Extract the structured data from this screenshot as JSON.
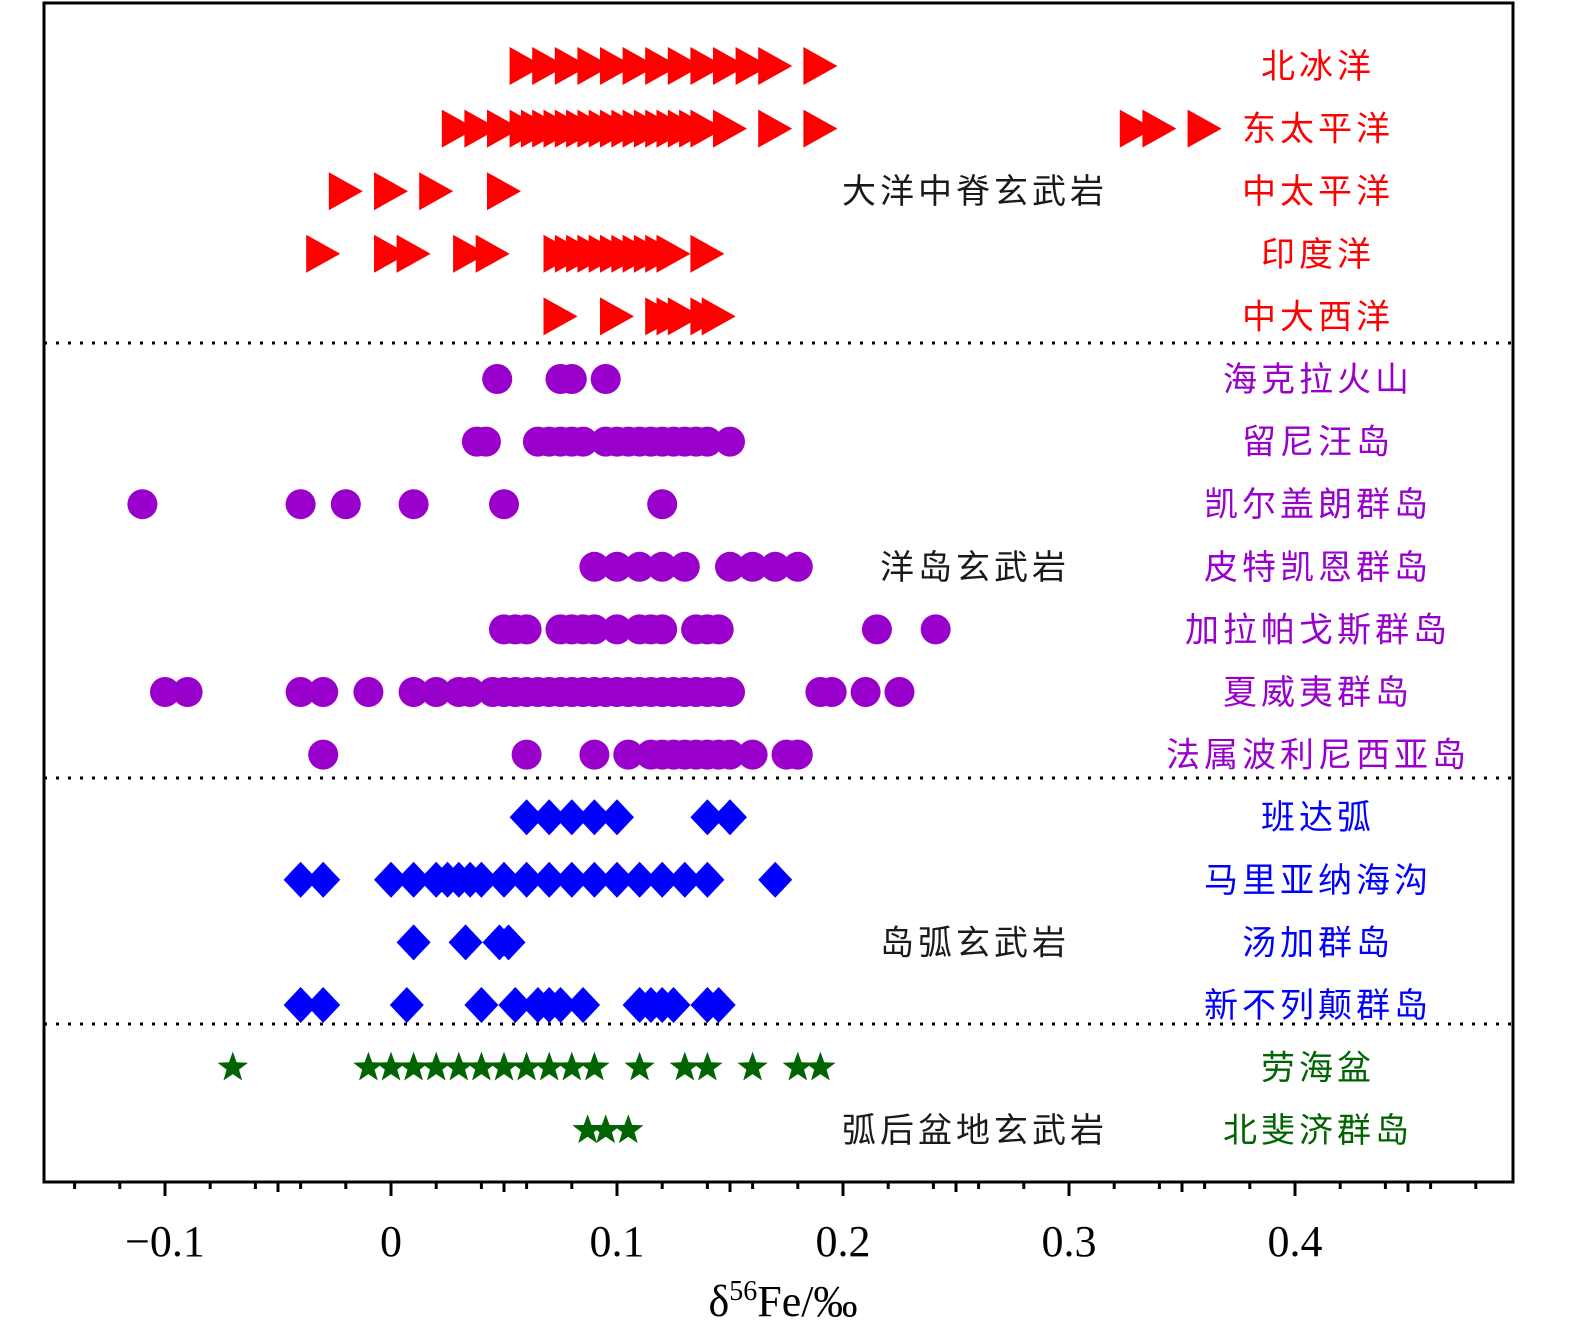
{
  "chart_data": {
    "type": "scatter",
    "xlabel": "δ56Fe/‰",
    "xlabel_parts": {
      "prefix": "δ",
      "sup": "56",
      "suffix": "Fe/‰"
    },
    "xlim": [
      -0.15,
      0.5
    ],
    "xticks": [
      -0.1,
      0,
      0.1,
      0.2,
      0.3,
      0.4
    ],
    "xtick_labels": [
      "−0.1",
      "0",
      "0.1",
      "0.2",
      "0.3",
      "0.4"
    ],
    "colors": {
      "mor": "#ff0000",
      "oib": "#9900cc",
      "arc": "#0000ff",
      "backarc": "#006400",
      "group_text": "#1a1a1a"
    },
    "groups": [
      {
        "name": "大洋中脊玄武岩",
        "label_row": 2,
        "color": "#ff0000",
        "marker": "triangle-right",
        "series": [
          {
            "name": "北冰洋",
            "row": 0,
            "values": [
              0.06,
              0.07,
              0.08,
              0.09,
              0.1,
              0.11,
              0.12,
              0.13,
              0.14,
              0.15,
              0.16,
              0.17,
              0.19
            ]
          },
          {
            "name": "东太平洋",
            "row": 1,
            "values": [
              0.03,
              0.04,
              0.05,
              0.06,
              0.065,
              0.07,
              0.075,
              0.08,
              0.085,
              0.09,
              0.095,
              0.1,
              0.105,
              0.11,
              0.115,
              0.12,
              0.125,
              0.13,
              0.135,
              0.14,
              0.15,
              0.17,
              0.19,
              0.33,
              0.34,
              0.36
            ]
          },
          {
            "name": "中太平洋",
            "row": 2,
            "values": [
              -0.02,
              0.0,
              0.02,
              0.05
            ]
          },
          {
            "name": "印度洋",
            "row": 3,
            "values": [
              -0.03,
              0.0,
              0.01,
              0.035,
              0.045,
              0.075,
              0.08,
              0.085,
              0.09,
              0.095,
              0.1,
              0.105,
              0.11,
              0.115,
              0.12,
              0.125,
              0.14
            ]
          },
          {
            "name": "中大西洋",
            "row": 4,
            "values": [
              0.075,
              0.1,
              0.12,
              0.125,
              0.13,
              0.14,
              0.145
            ]
          }
        ]
      },
      {
        "name": "洋岛玄武岩",
        "label_row": 8,
        "color": "#9900cc",
        "marker": "circle",
        "series": [
          {
            "name": "海克拉火山",
            "row": 5,
            "values": [
              0.047,
              0.075,
              0.08,
              0.095
            ]
          },
          {
            "name": "留尼汪岛",
            "row": 6,
            "values": [
              0.038,
              0.042,
              0.065,
              0.07,
              0.075,
              0.08,
              0.085,
              0.095,
              0.1,
              0.105,
              0.11,
              0.115,
              0.12,
              0.125,
              0.13,
              0.135,
              0.14,
              0.15
            ]
          },
          {
            "name": "凯尔盖朗群岛",
            "row": 7,
            "values": [
              -0.11,
              -0.04,
              -0.02,
              0.01,
              0.05,
              0.12
            ]
          },
          {
            "name": "皮特凯恩群岛",
            "row": 8,
            "values": [
              0.09,
              0.1,
              0.11,
              0.12,
              0.13,
              0.15,
              0.16,
              0.17,
              0.18
            ]
          },
          {
            "name": "加拉帕戈斯群岛",
            "row": 9,
            "values": [
              0.05,
              0.055,
              0.06,
              0.075,
              0.08,
              0.085,
              0.09,
              0.1,
              0.11,
              0.115,
              0.12,
              0.135,
              0.14,
              0.145,
              0.215,
              0.241
            ]
          },
          {
            "name": "夏威夷群岛",
            "row": 10,
            "values": [
              -0.1,
              -0.09,
              -0.04,
              -0.03,
              -0.01,
              0.01,
              0.02,
              0.03,
              0.035,
              0.045,
              0.05,
              0.055,
              0.06,
              0.065,
              0.07,
              0.075,
              0.08,
              0.085,
              0.09,
              0.095,
              0.1,
              0.105,
              0.11,
              0.115,
              0.12,
              0.125,
              0.13,
              0.135,
              0.14,
              0.145,
              0.15,
              0.19,
              0.195,
              0.21,
              0.225
            ]
          },
          {
            "name": "法属波利尼西亚岛",
            "row": 11,
            "values": [
              -0.03,
              0.06,
              0.09,
              0.105,
              0.115,
              0.12,
              0.125,
              0.13,
              0.135,
              0.14,
              0.145,
              0.15,
              0.16,
              0.175,
              0.18
            ]
          }
        ]
      },
      {
        "name": "岛弧玄武岩",
        "label_row": 14,
        "color": "#0000ff",
        "marker": "diamond",
        "series": [
          {
            "name": "班达弧",
            "row": 12,
            "values": [
              0.06,
              0.07,
              0.08,
              0.09,
              0.1,
              0.14,
              0.15
            ]
          },
          {
            "name": "马里亚纳海沟",
            "row": 13,
            "values": [
              -0.04,
              -0.03,
              0.0,
              0.01,
              0.02,
              0.025,
              0.03,
              0.035,
              0.04,
              0.05,
              0.06,
              0.07,
              0.08,
              0.09,
              0.1,
              0.11,
              0.12,
              0.13,
              0.14,
              0.17
            ]
          },
          {
            "name": "汤加群岛",
            "row": 14,
            "values": [
              0.01,
              0.033,
              0.048,
              0.052
            ]
          },
          {
            "name": "新不列颠群岛",
            "row": 15,
            "values": [
              -0.04,
              -0.03,
              0.007,
              0.04,
              0.055,
              0.065,
              0.07,
              0.075,
              0.085,
              0.11,
              0.115,
              0.12,
              0.125,
              0.14,
              0.145
            ]
          }
        ]
      },
      {
        "name": "弧后盆地玄武岩",
        "label_row": 17,
        "color": "#006400",
        "marker": "star",
        "series": [
          {
            "name": "劳海盆",
            "row": 16,
            "values": [
              -0.07,
              -0.01,
              0.0,
              0.01,
              0.02,
              0.03,
              0.04,
              0.05,
              0.06,
              0.07,
              0.08,
              0.09,
              0.11,
              0.13,
              0.14,
              0.16,
              0.18,
              0.19
            ]
          },
          {
            "name": "北斐济群岛",
            "row": 17,
            "values": [
              0.087,
              0.095,
              0.105
            ]
          }
        ]
      }
    ]
  }
}
